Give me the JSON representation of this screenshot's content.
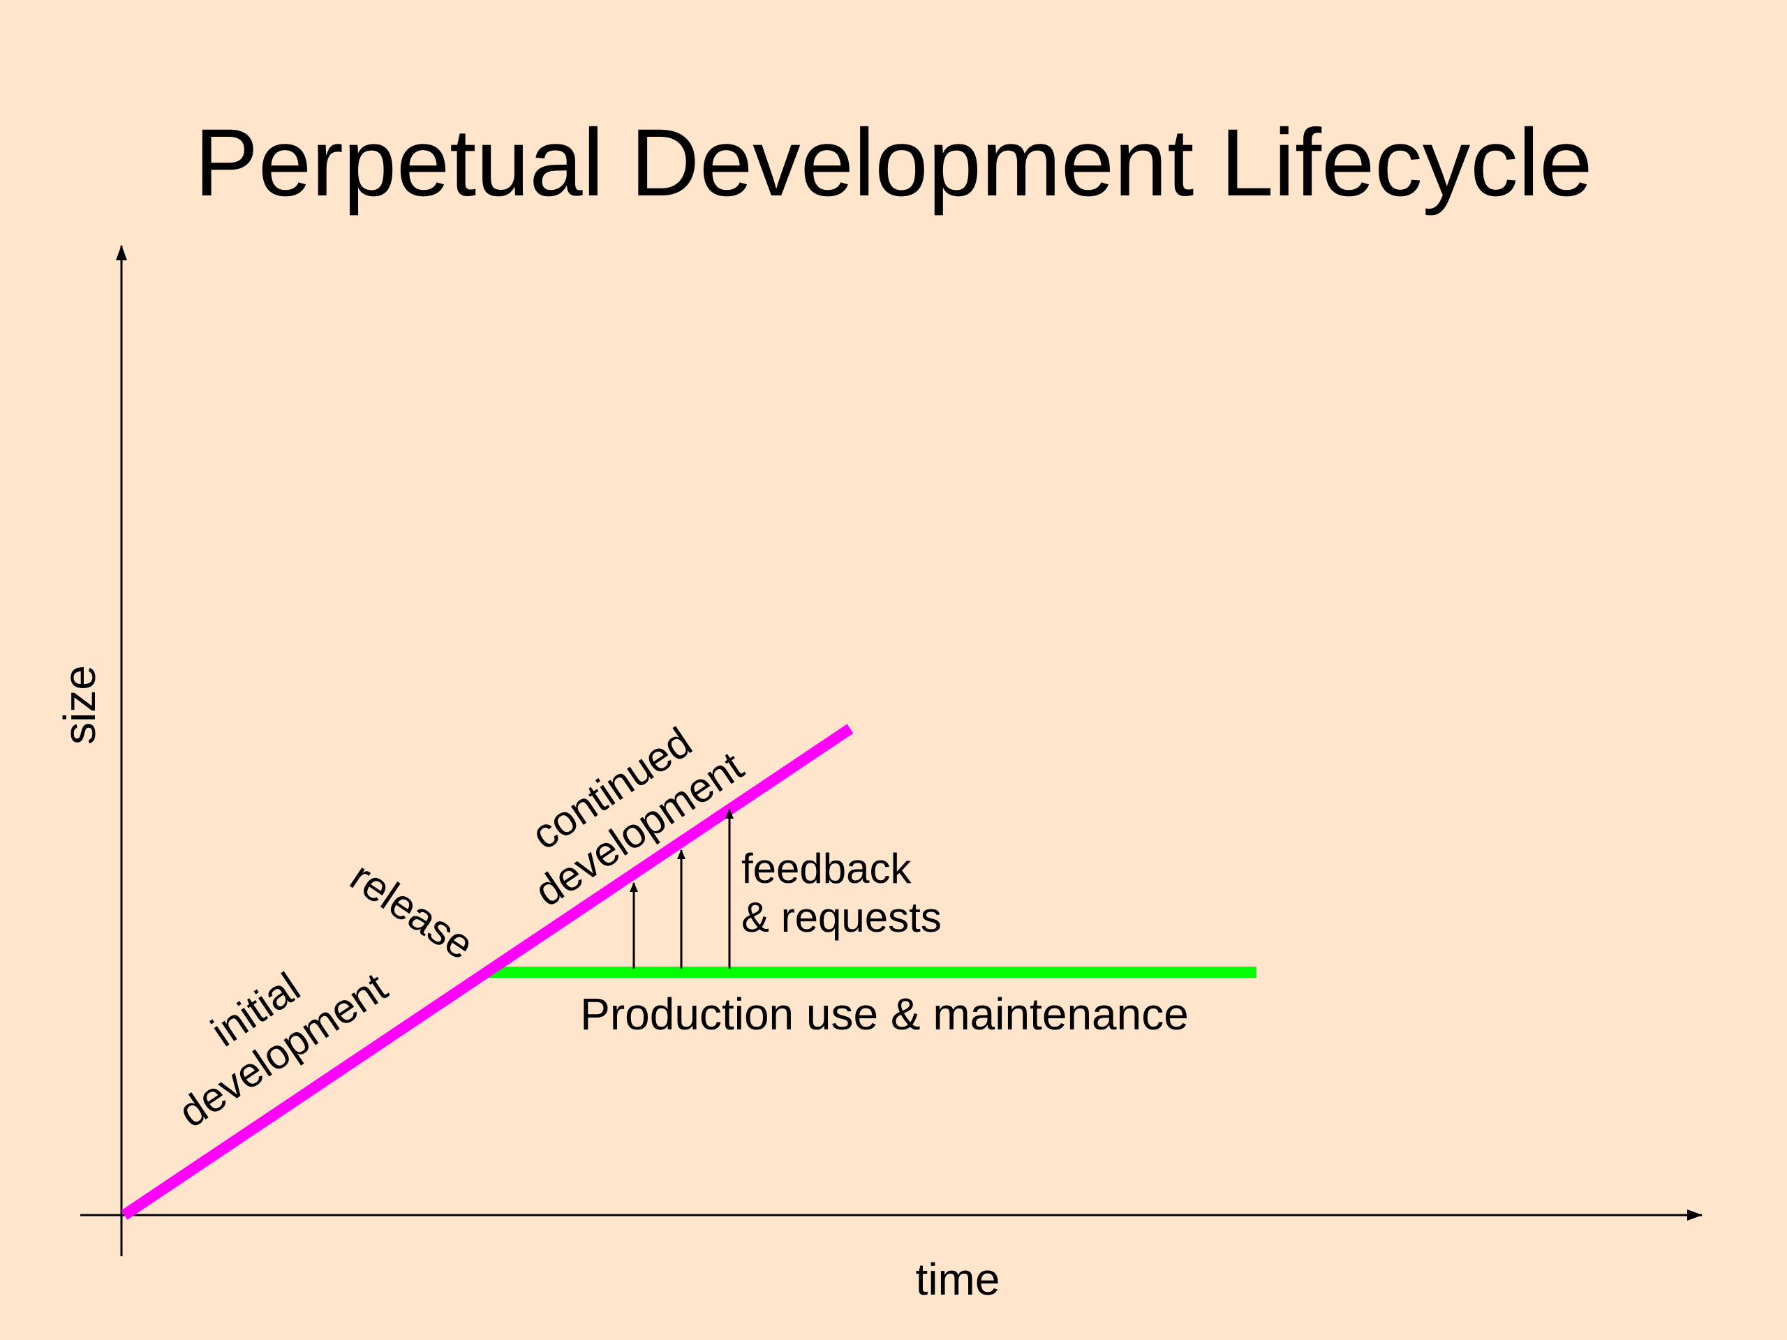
{
  "title": "Perpetual Development Lifecycle",
  "axes": {
    "x_label": "time",
    "y_label": "size"
  },
  "labels": {
    "initial_line1": "initial",
    "initial_line2": "development",
    "release": "release",
    "continued_line1": "continued",
    "continued_line2": "development",
    "feedback_line1": "feedback",
    "feedback_line2": "& requests",
    "production": "Production use & maintenance"
  },
  "colors": {
    "background": "#FFE5CC",
    "development_line": "#FF00FF",
    "production_line": "#00FF00",
    "axes": "#000000"
  },
  "feedback_arrow_count": 3
}
